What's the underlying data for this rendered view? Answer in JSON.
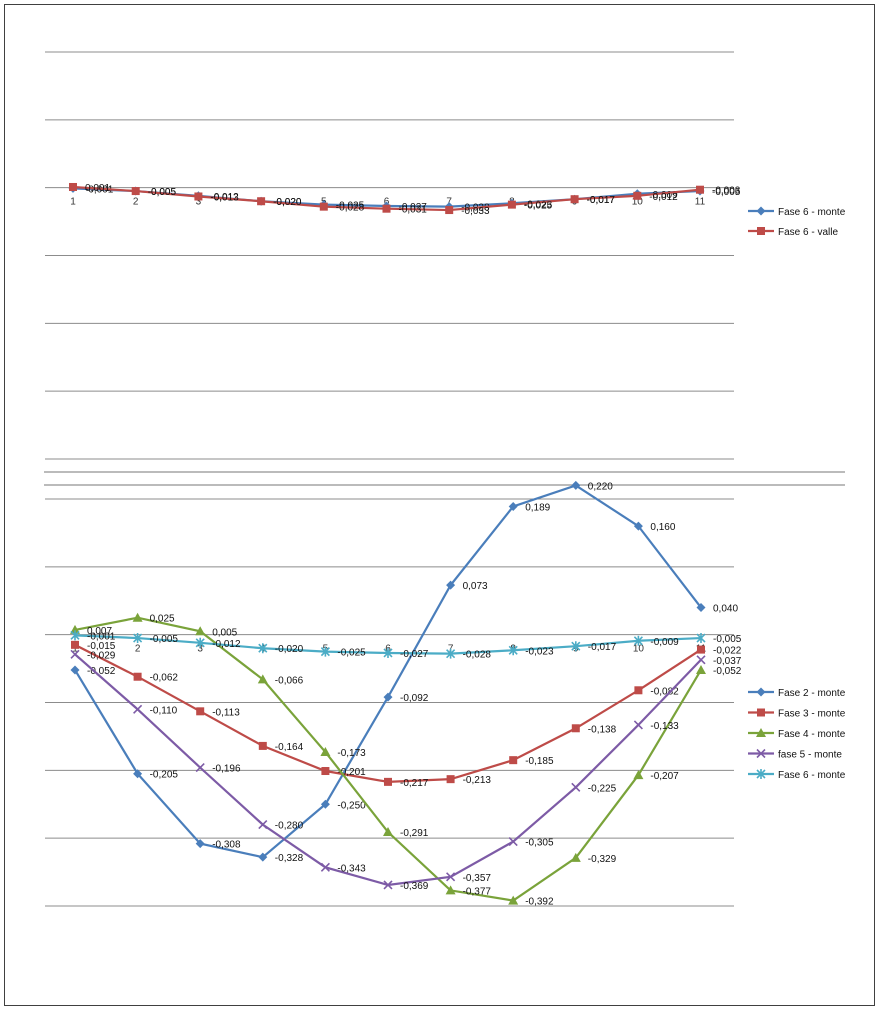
{
  "chart_data": [
    {
      "type": "line",
      "title": "",
      "xlabel": "",
      "ylabel": "",
      "categories": [
        "1",
        "2",
        "3",
        "4",
        "5",
        "6",
        "7",
        "8",
        "9",
        "10",
        "11"
      ],
      "legend_position": "right",
      "grid": true,
      "ylim": [
        -0.4,
        0.2
      ],
      "series": [
        {
          "name": "Fase 6 - monte",
          "color": "#4a7ebb",
          "marker": "diamond",
          "values": [
            -0.001,
            -0.005,
            -0.012,
            -0.02,
            -0.025,
            -0.027,
            -0.028,
            -0.023,
            -0.017,
            -0.009,
            -0.005
          ],
          "labels": [
            "-0,001",
            "-0,005",
            "-0,012",
            "-0,020",
            "-0,025",
            "-0,027",
            "-0,028",
            "-0,023",
            "-0,017",
            "-0,009",
            "-0,005"
          ]
        },
        {
          "name": "Fase 6 - valle",
          "color": "#be4b48",
          "marker": "square",
          "values": [
            0.001,
            -0.005,
            -0.013,
            -0.02,
            -0.028,
            -0.031,
            -0.033,
            -0.025,
            -0.017,
            -0.012,
            -0.003
          ],
          "labels": [
            "0,001",
            "-0,005",
            "-0,013",
            "-0,020",
            "-0,028",
            "-0,031",
            "-0,033",
            "-0,025",
            "-0,017",
            "-0,012",
            "-0,003"
          ]
        }
      ]
    },
    {
      "type": "line",
      "title": "",
      "xlabel": "",
      "ylabel": "",
      "categories": [
        "1",
        "2",
        "3",
        "4",
        "5",
        "6",
        "7",
        "8",
        "9",
        "10",
        "11"
      ],
      "legend_position": "right",
      "grid": true,
      "ylim": [
        -0.4,
        0.2
      ],
      "series": [
        {
          "name": "Fase 2 - monte",
          "color": "#4a7ebb",
          "marker": "diamond",
          "values": [
            -0.052,
            -0.205,
            -0.308,
            -0.328,
            -0.25,
            -0.092,
            0.073,
            0.189,
            0.22,
            0.16,
            0.04
          ],
          "labels": [
            "-0,052",
            "-0,205",
            "-0,308",
            "-0,328",
            "-0,250",
            "-0,092",
            "0,073",
            "0,189",
            "0,220",
            "0,160",
            "0,040"
          ]
        },
        {
          "name": "Fase 3 - monte",
          "color": "#be4b48",
          "marker": "square",
          "values": [
            -0.015,
            -0.062,
            -0.113,
            -0.164,
            -0.201,
            -0.217,
            -0.213,
            -0.185,
            -0.138,
            -0.082,
            -0.022
          ],
          "labels": [
            "-0,015",
            "-0,062",
            "-0,113",
            "-0,164",
            "-0,201",
            "-0,217",
            "-0,213",
            "-0,185",
            "-0,138",
            "-0,082",
            "-0,022"
          ]
        },
        {
          "name": "Fase 4 - monte",
          "color": "#7aa33a",
          "marker": "triangle",
          "values": [
            0.007,
            0.025,
            0.005,
            -0.066,
            -0.173,
            -0.291,
            -0.377,
            -0.392,
            -0.329,
            -0.207,
            -0.052
          ],
          "labels": [
            "0,007",
            "0,025",
            "0,005",
            "-0,066",
            "-0,173",
            "-0,291",
            "-0,377",
            "-0,392",
            "-0,329",
            "-0,207",
            "-0,052"
          ]
        },
        {
          "name": "fase 5 - monte",
          "color": "#7d5ba6",
          "marker": "x",
          "values": [
            -0.029,
            -0.11,
            -0.196,
            -0.28,
            -0.343,
            -0.369,
            -0.357,
            -0.305,
            -0.225,
            -0.133,
            -0.037
          ],
          "labels": [
            "-0,029",
            "-0,110",
            "-0,196",
            "-0,280",
            "-0,343",
            "-0,369",
            "-0,357",
            "-0,305",
            "-0,225",
            "-0,133",
            "-0,037"
          ]
        },
        {
          "name": "Fase 6 - monte",
          "color": "#4bacc6",
          "marker": "star",
          "values": [
            -0.001,
            -0.005,
            -0.012,
            -0.02,
            -0.025,
            -0.027,
            -0.028,
            -0.023,
            -0.017,
            -0.009,
            -0.005
          ],
          "labels": [
            "-0,001",
            "-0,005",
            "-0,012",
            "-0,020",
            "-0,025",
            "-0,027",
            "-0,028",
            "-0,023",
            "-0,017",
            "-0,009",
            "-0,005"
          ]
        }
      ]
    }
  ]
}
